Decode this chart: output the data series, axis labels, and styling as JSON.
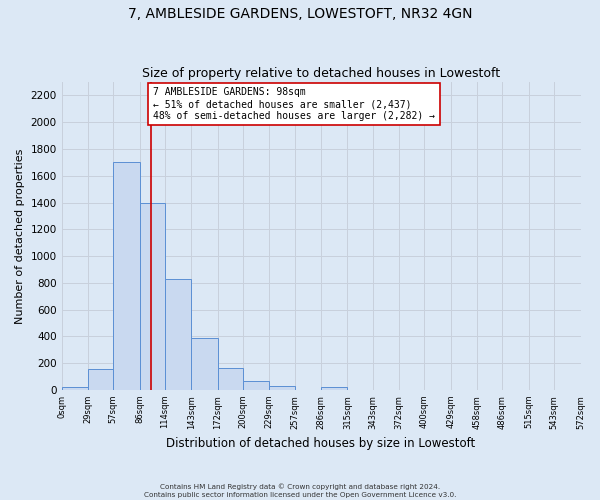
{
  "title": "7, AMBLESIDE GARDENS, LOWESTOFT, NR32 4GN",
  "subtitle": "Size of property relative to detached houses in Lowestoft",
  "xlabel": "Distribution of detached houses by size in Lowestoft",
  "ylabel": "Number of detached properties",
  "bin_edges": [
    0,
    29,
    57,
    86,
    114,
    143,
    172,
    200,
    229,
    257,
    286,
    315,
    343,
    372,
    400,
    429,
    458,
    486,
    515,
    543,
    572
  ],
  "bin_labels": [
    "0sqm",
    "29sqm",
    "57sqm",
    "86sqm",
    "114sqm",
    "143sqm",
    "172sqm",
    "200sqm",
    "229sqm",
    "257sqm",
    "286sqm",
    "315sqm",
    "343sqm",
    "372sqm",
    "400sqm",
    "429sqm",
    "458sqm",
    "486sqm",
    "515sqm",
    "543sqm",
    "572sqm"
  ],
  "counts": [
    20,
    155,
    1700,
    1395,
    830,
    385,
    165,
    65,
    30,
    0,
    25,
    0,
    0,
    0,
    0,
    0,
    0,
    0,
    0,
    0
  ],
  "bar_color": "#c9d9f0",
  "bar_edge_color": "#5b8fd4",
  "vline_color": "#cc0000",
  "vline_x": 98,
  "annotation_text": "7 AMBLESIDE GARDENS: 98sqm\n← 51% of detached houses are smaller (2,437)\n48% of semi-detached houses are larger (2,282) →",
  "annotation_box_edgecolor": "#cc0000",
  "annotation_box_facecolor": "#ffffff",
  "ylim": [
    0,
    2300
  ],
  "yticks": [
    0,
    200,
    400,
    600,
    800,
    1000,
    1200,
    1400,
    1600,
    1800,
    2000,
    2200
  ],
  "grid_color": "#c8d0dc",
  "bg_color": "#dce8f5",
  "footer_line1": "Contains HM Land Registry data © Crown copyright and database right 2024.",
  "footer_line2": "Contains public sector information licensed under the Open Government Licence v3.0.",
  "title_fontsize": 10,
  "subtitle_fontsize": 9,
  "ylabel_fontsize": 8,
  "xlabel_fontsize": 8.5,
  "annotation_fontsize": 7,
  "ytick_fontsize": 7.5,
  "xtick_fontsize": 6
}
